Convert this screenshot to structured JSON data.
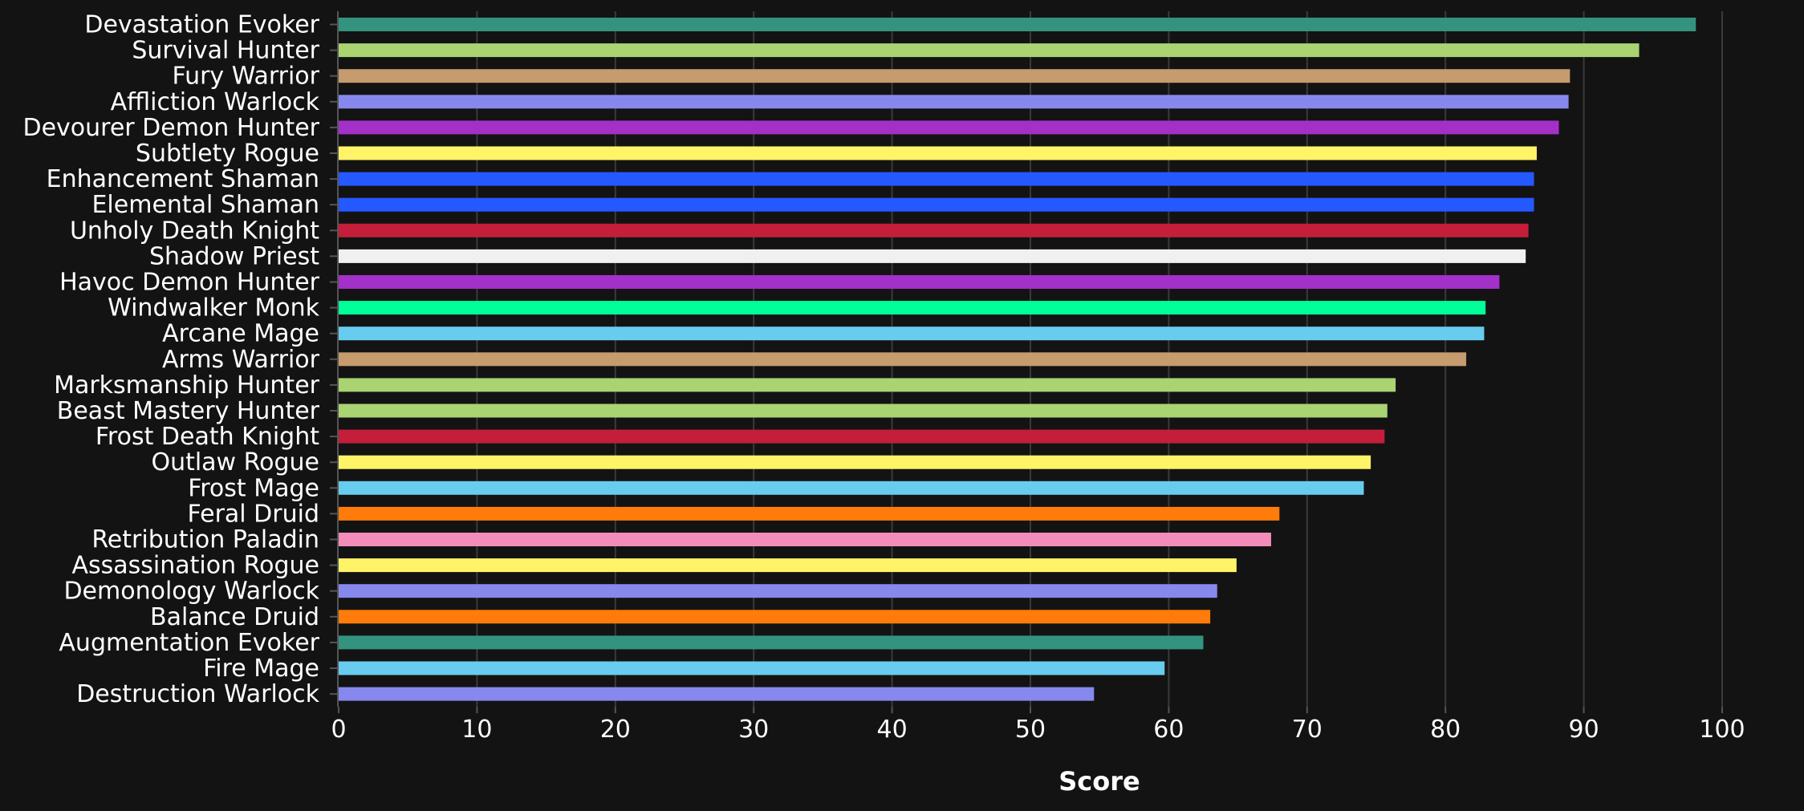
{
  "chart_data": {
    "type": "bar",
    "orientation": "horizontal",
    "xlabel": "Score",
    "xlim": [
      0,
      100
    ],
    "xticks": [
      0,
      10,
      20,
      30,
      40,
      50,
      60,
      70,
      80,
      90,
      100
    ],
    "grid": "vertical",
    "categories": [
      "Devastation Evoker",
      "Survival Hunter",
      "Fury Warrior",
      "Affliction Warlock",
      "Devourer Demon Hunter",
      "Subtlety Rogue",
      "Enhancement Shaman",
      "Elemental Shaman",
      "Unholy Death Knight",
      "Shadow Priest",
      "Havoc Demon Hunter",
      "Windwalker Monk",
      "Arcane Mage",
      "Arms Warrior",
      "Marksmanship Hunter",
      "Beast Mastery Hunter",
      "Frost Death Knight",
      "Outlaw Rogue",
      "Frost Mage",
      "Feral Druid",
      "Retribution Paladin",
      "Assassination Rogue",
      "Demonology Warlock",
      "Balance Druid",
      "Augmentation Evoker",
      "Fire Mage",
      "Destruction Warlock"
    ],
    "values": [
      98.1,
      94.0,
      89.0,
      88.9,
      88.2,
      86.6,
      86.4,
      86.4,
      86.0,
      85.8,
      83.9,
      82.9,
      82.8,
      81.5,
      76.4,
      75.8,
      75.6,
      74.6,
      74.1,
      68.0,
      67.4,
      64.9,
      63.5,
      63.0,
      62.5,
      59.7,
      54.6
    ],
    "colors": [
      "#33937f",
      "#aad372",
      "#c69b6d",
      "#8788ee",
      "#a330c9",
      "#fff468",
      "#2459ff",
      "#2459ff",
      "#c41e3a",
      "#f0f0f0",
      "#a330c9",
      "#00ff98",
      "#68ccef",
      "#c69b6d",
      "#aad372",
      "#aad372",
      "#c41e3a",
      "#fff468",
      "#68ccef",
      "#ff7c0a",
      "#f48cba",
      "#fff468",
      "#8788ee",
      "#ff7c0a",
      "#33937f",
      "#68ccef",
      "#8788ee"
    ]
  }
}
